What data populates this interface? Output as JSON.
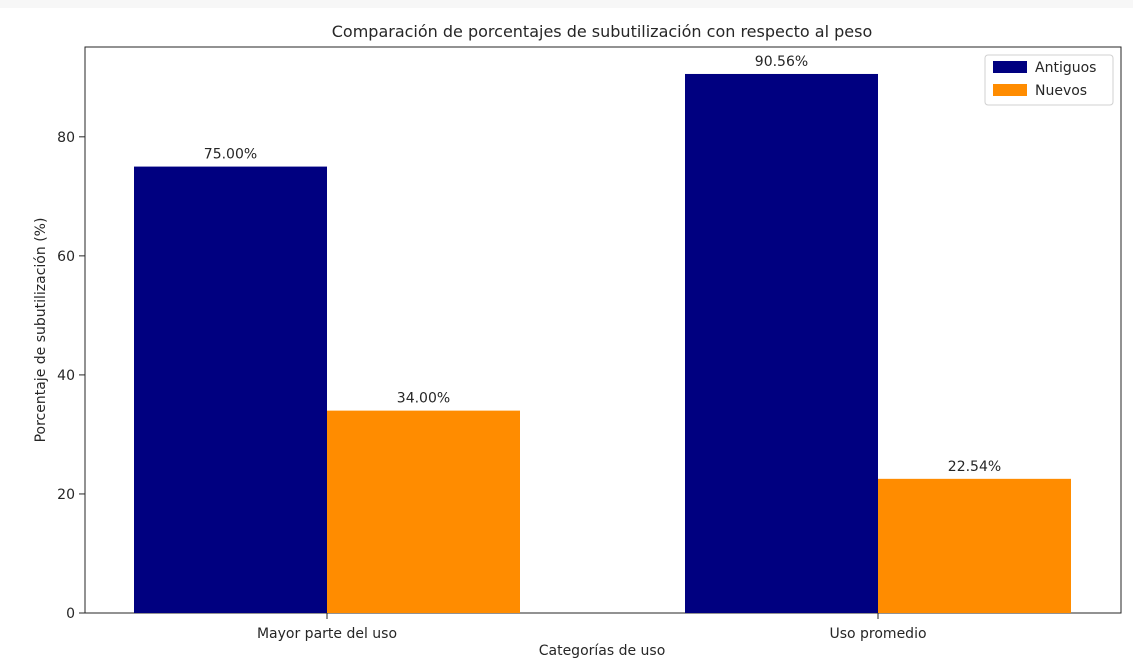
{
  "chart_data": {
    "type": "bar",
    "title": "Comparación de porcentajes de subutilización con respecto al peso",
    "xlabel": "Categorías de uso",
    "ylabel": "Porcentaje de subutilización (%)",
    "categories": [
      "Mayor parte del uso",
      "Uso promedio"
    ],
    "series": [
      {
        "name": "Antiguos",
        "color": "#000080",
        "values": [
          75.0,
          90.56
        ],
        "labels": [
          "75.00%",
          "90.56%"
        ]
      },
      {
        "name": "Nuevos",
        "color": "#ff8c00",
        "values": [
          34.0,
          22.54
        ],
        "labels": [
          "34.00%",
          "22.54%"
        ]
      }
    ],
    "ylim": [
      0,
      95.09
    ],
    "yticks": [
      0,
      20,
      40,
      60,
      80
    ],
    "ytick_labels": [
      "0",
      "20",
      "40",
      "60",
      "80"
    ],
    "legend_position": "top-right",
    "grid": false
  }
}
